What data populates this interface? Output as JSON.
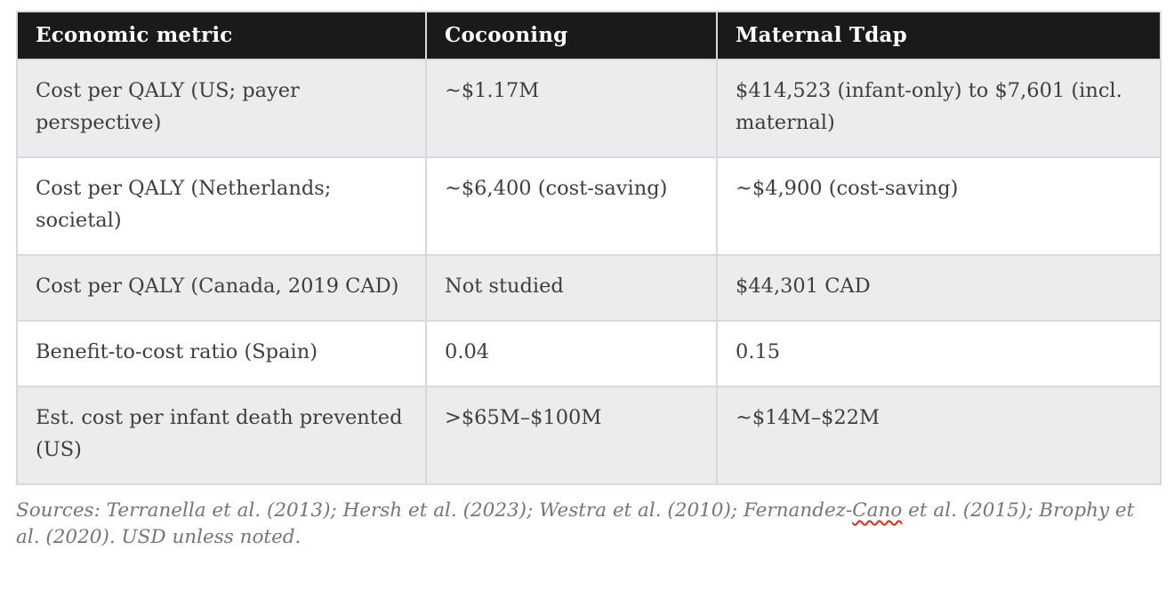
{
  "table": {
    "header": {
      "metric": "Economic metric",
      "cocooning": "Cocooning",
      "maternal_tdap": "Maternal Tdap"
    },
    "rows": [
      {
        "metric": "Cost per QALY (US; payer perspective)",
        "cocooning": "~$1.17M",
        "maternal_tdap": "$414,523 (infant-only) to $7,601 (incl. maternal)"
      },
      {
        "metric": "Cost per QALY (Netherlands; societal)",
        "cocooning": "~$6,400 (cost-saving)",
        "maternal_tdap": "~$4,900 (cost-saving)"
      },
      {
        "metric": "Cost per QALY (Canada, 2019 CAD)",
        "cocooning": "Not studied",
        "maternal_tdap": "$44,301 CAD"
      },
      {
        "metric": "Benefit-to-cost ratio (Spain)",
        "cocooning": "0.04",
        "maternal_tdap": "0.15"
      },
      {
        "metric": "Est. cost per infant death prevented (US)",
        "cocooning": ">$65M–$100M",
        "maternal_tdap": "~$14M–$22M"
      }
    ]
  },
  "footnote": {
    "prefix": "Sources: Terranella et al. (2013); Hersh et al. (2023); Westra et al. (2010); Fernandez-",
    "misspelled_word": "Cano",
    "suffix": " et al. (2015); Brophy et al. (2020). USD unless noted."
  },
  "colors": {
    "header_bg": "#1a1a1a",
    "header_text": "#ffffff",
    "row_alt_bg": "#ececee",
    "row_bg": "#ffffff",
    "border": "#d9d9db",
    "body_text": "#3e3e3e",
    "footnote_text": "#757575",
    "spellcheck_underline": "#e02a18"
  }
}
